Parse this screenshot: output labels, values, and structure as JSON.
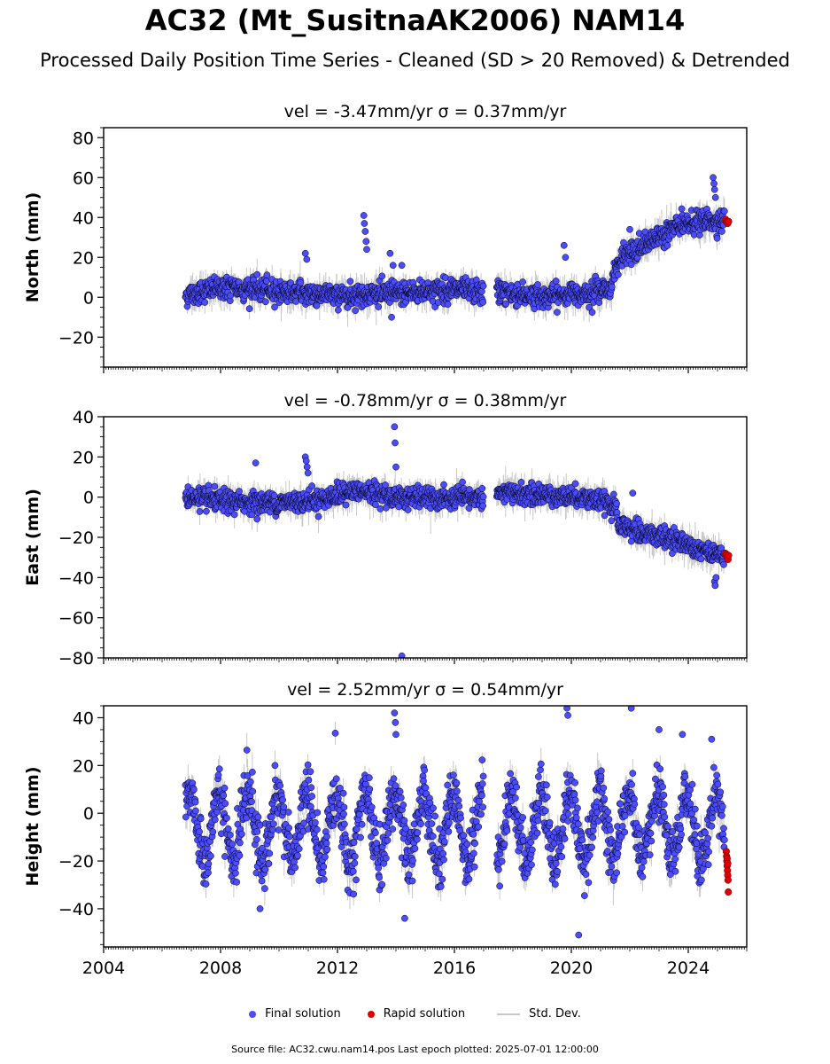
{
  "figure": {
    "title": "AC32 (Mt_SusitnaAK2006) NAM14",
    "subtitle": "Processed Daily Position Time Series - Cleaned (SD > 20 Removed) & Detrended",
    "footer": "Source file: AC32.cwu.nam14.pos  Last epoch plotted: 2025-07-01 12:00:00"
  },
  "colors": {
    "final": "#4b4bff",
    "final_edge": "#000000",
    "rapid": "#e00000",
    "stddev": "#c8c8c8",
    "axis": "#000000"
  },
  "legend": [
    {
      "label": "Final solution",
      "kind": "final"
    },
    {
      "label": "Rapid solution",
      "kind": "rapid"
    },
    {
      "label": "Std. Dev.",
      "kind": "stddev"
    }
  ],
  "chart_data": [
    {
      "type": "scatter",
      "panel_title": "vel = -3.47mm/yr   σ = 0.37mm/yr",
      "ylabel": "North (mm)",
      "xlim": [
        2004,
        2026
      ],
      "ylim": [
        -35,
        85
      ],
      "xticks": [
        2004,
        2008,
        2012,
        2016,
        2020,
        2024
      ],
      "yticks": [
        -20,
        0,
        20,
        40,
        60,
        80
      ],
      "data_span": [
        2006.8,
        2025.4
      ],
      "gap": [
        2017.0,
        2017.45
      ],
      "trend_keypoints": [
        [
          2006.8,
          1
        ],
        [
          2008,
          5
        ],
        [
          2010,
          3
        ],
        [
          2012,
          1
        ],
        [
          2014,
          2
        ],
        [
          2016,
          4
        ],
        [
          2017,
          2
        ],
        [
          2017.45,
          3
        ],
        [
          2019,
          0
        ],
        [
          2021.3,
          4
        ],
        [
          2021.6,
          18
        ],
        [
          2022.5,
          26
        ],
        [
          2023.5,
          35
        ],
        [
          2024.3,
          38
        ],
        [
          2025.4,
          38
        ]
      ],
      "noise_sd": 2.8,
      "final_outliers": [
        [
          2010.9,
          22
        ],
        [
          2010.95,
          19
        ],
        [
          2012.9,
          41
        ],
        [
          2012.92,
          37
        ],
        [
          2012.95,
          33
        ],
        [
          2012.98,
          28
        ],
        [
          2013.0,
          24
        ],
        [
          2013.8,
          22
        ],
        [
          2013.9,
          16
        ],
        [
          2014.2,
          16
        ],
        [
          2013.85,
          -10
        ],
        [
          2019.75,
          26
        ],
        [
          2019.8,
          20
        ],
        [
          2022.0,
          34
        ],
        [
          2024.85,
          60
        ],
        [
          2024.88,
          57
        ],
        [
          2024.9,
          54
        ],
        [
          2024.93,
          50
        ]
      ],
      "rapid_points": [
        [
          2025.28,
          39
        ],
        [
          2025.3,
          38
        ],
        [
          2025.32,
          37.5
        ],
        [
          2025.35,
          37
        ],
        [
          2025.38,
          38
        ]
      ]
    },
    {
      "type": "scatter",
      "panel_title": "vel = -0.78mm/yr   σ = 0.38mm/yr",
      "ylabel": "East (mm)",
      "xlim": [
        2004,
        2026
      ],
      "ylim": [
        -80,
        40
      ],
      "xticks": [
        2004,
        2008,
        2012,
        2016,
        2020,
        2024
      ],
      "yticks": [
        -80,
        -60,
        -40,
        -20,
        0,
        20,
        40
      ],
      "data_span": [
        2006.8,
        2025.4
      ],
      "gap": [
        2017.0,
        2017.45
      ],
      "trend_keypoints": [
        [
          2006.8,
          0
        ],
        [
          2008,
          -2
        ],
        [
          2010,
          -3
        ],
        [
          2011.5,
          -1
        ],
        [
          2012.6,
          3
        ],
        [
          2014,
          0
        ],
        [
          2016,
          -1
        ],
        [
          2017,
          0
        ],
        [
          2017.45,
          2
        ],
        [
          2019,
          1
        ],
        [
          2020.5,
          0
        ],
        [
          2021.5,
          -5
        ],
        [
          2021.6,
          -14
        ],
        [
          2022.5,
          -18
        ],
        [
          2023.5,
          -21
        ],
        [
          2024.5,
          -26
        ],
        [
          2025.4,
          -30
        ]
      ],
      "noise_sd": 2.5,
      "final_outliers": [
        [
          2009.2,
          17
        ],
        [
          2010.9,
          20
        ],
        [
          2010.93,
          18
        ],
        [
          2010.96,
          15
        ],
        [
          2010.99,
          12
        ],
        [
          2013.95,
          35
        ],
        [
          2013.97,
          27
        ],
        [
          2014.0,
          15
        ],
        [
          2014.2,
          -79
        ],
        [
          2022.1,
          2
        ],
        [
          2024.9,
          -42
        ],
        [
          2024.92,
          -44
        ],
        [
          2024.95,
          -40
        ]
      ],
      "rapid_points": [
        [
          2025.28,
          -28
        ],
        [
          2025.3,
          -29
        ],
        [
          2025.33,
          -30
        ],
        [
          2025.36,
          -31
        ],
        [
          2025.38,
          -29
        ]
      ]
    },
    {
      "type": "scatter",
      "panel_title": "vel = 2.52mm/yr   σ = 0.54mm/yr",
      "ylabel": "Height (mm)",
      "xlim": [
        2004,
        2026
      ],
      "ylim": [
        -56,
        45
      ],
      "xticks": [
        2004,
        2008,
        2012,
        2016,
        2020,
        2024
      ],
      "yticks": [
        -40,
        -20,
        0,
        20,
        40
      ],
      "data_span": [
        2006.8,
        2025.35
      ],
      "gap": [
        2017.0,
        2017.45
      ],
      "seasonal_amplitude": 14,
      "seasonal_peak_phase": 0.95,
      "trend_keypoints": [
        [
          2006.8,
          -6
        ],
        [
          2025.35,
          -6
        ]
      ],
      "noise_sd": 6,
      "final_outliers": [
        [
          2013.95,
          42
        ],
        [
          2013.98,
          38
        ],
        [
          2014.0,
          33
        ],
        [
          2019.85,
          44
        ],
        [
          2019.88,
          41
        ],
        [
          2020.25,
          -51
        ],
        [
          2022.05,
          44
        ],
        [
          2023.0,
          35
        ],
        [
          2023.8,
          33
        ],
        [
          2024.8,
          31
        ],
        [
          2009.35,
          -40
        ],
        [
          2014.3,
          -44
        ]
      ],
      "rapid_points": [
        [
          2025.3,
          -16
        ],
        [
          2025.31,
          -18
        ],
        [
          2025.32,
          -20
        ],
        [
          2025.33,
          -22
        ],
        [
          2025.34,
          -24
        ],
        [
          2025.35,
          -26
        ],
        [
          2025.36,
          -28
        ],
        [
          2025.37,
          -33
        ],
        [
          2025.33,
          -19
        ],
        [
          2025.35,
          -21
        ]
      ]
    }
  ]
}
